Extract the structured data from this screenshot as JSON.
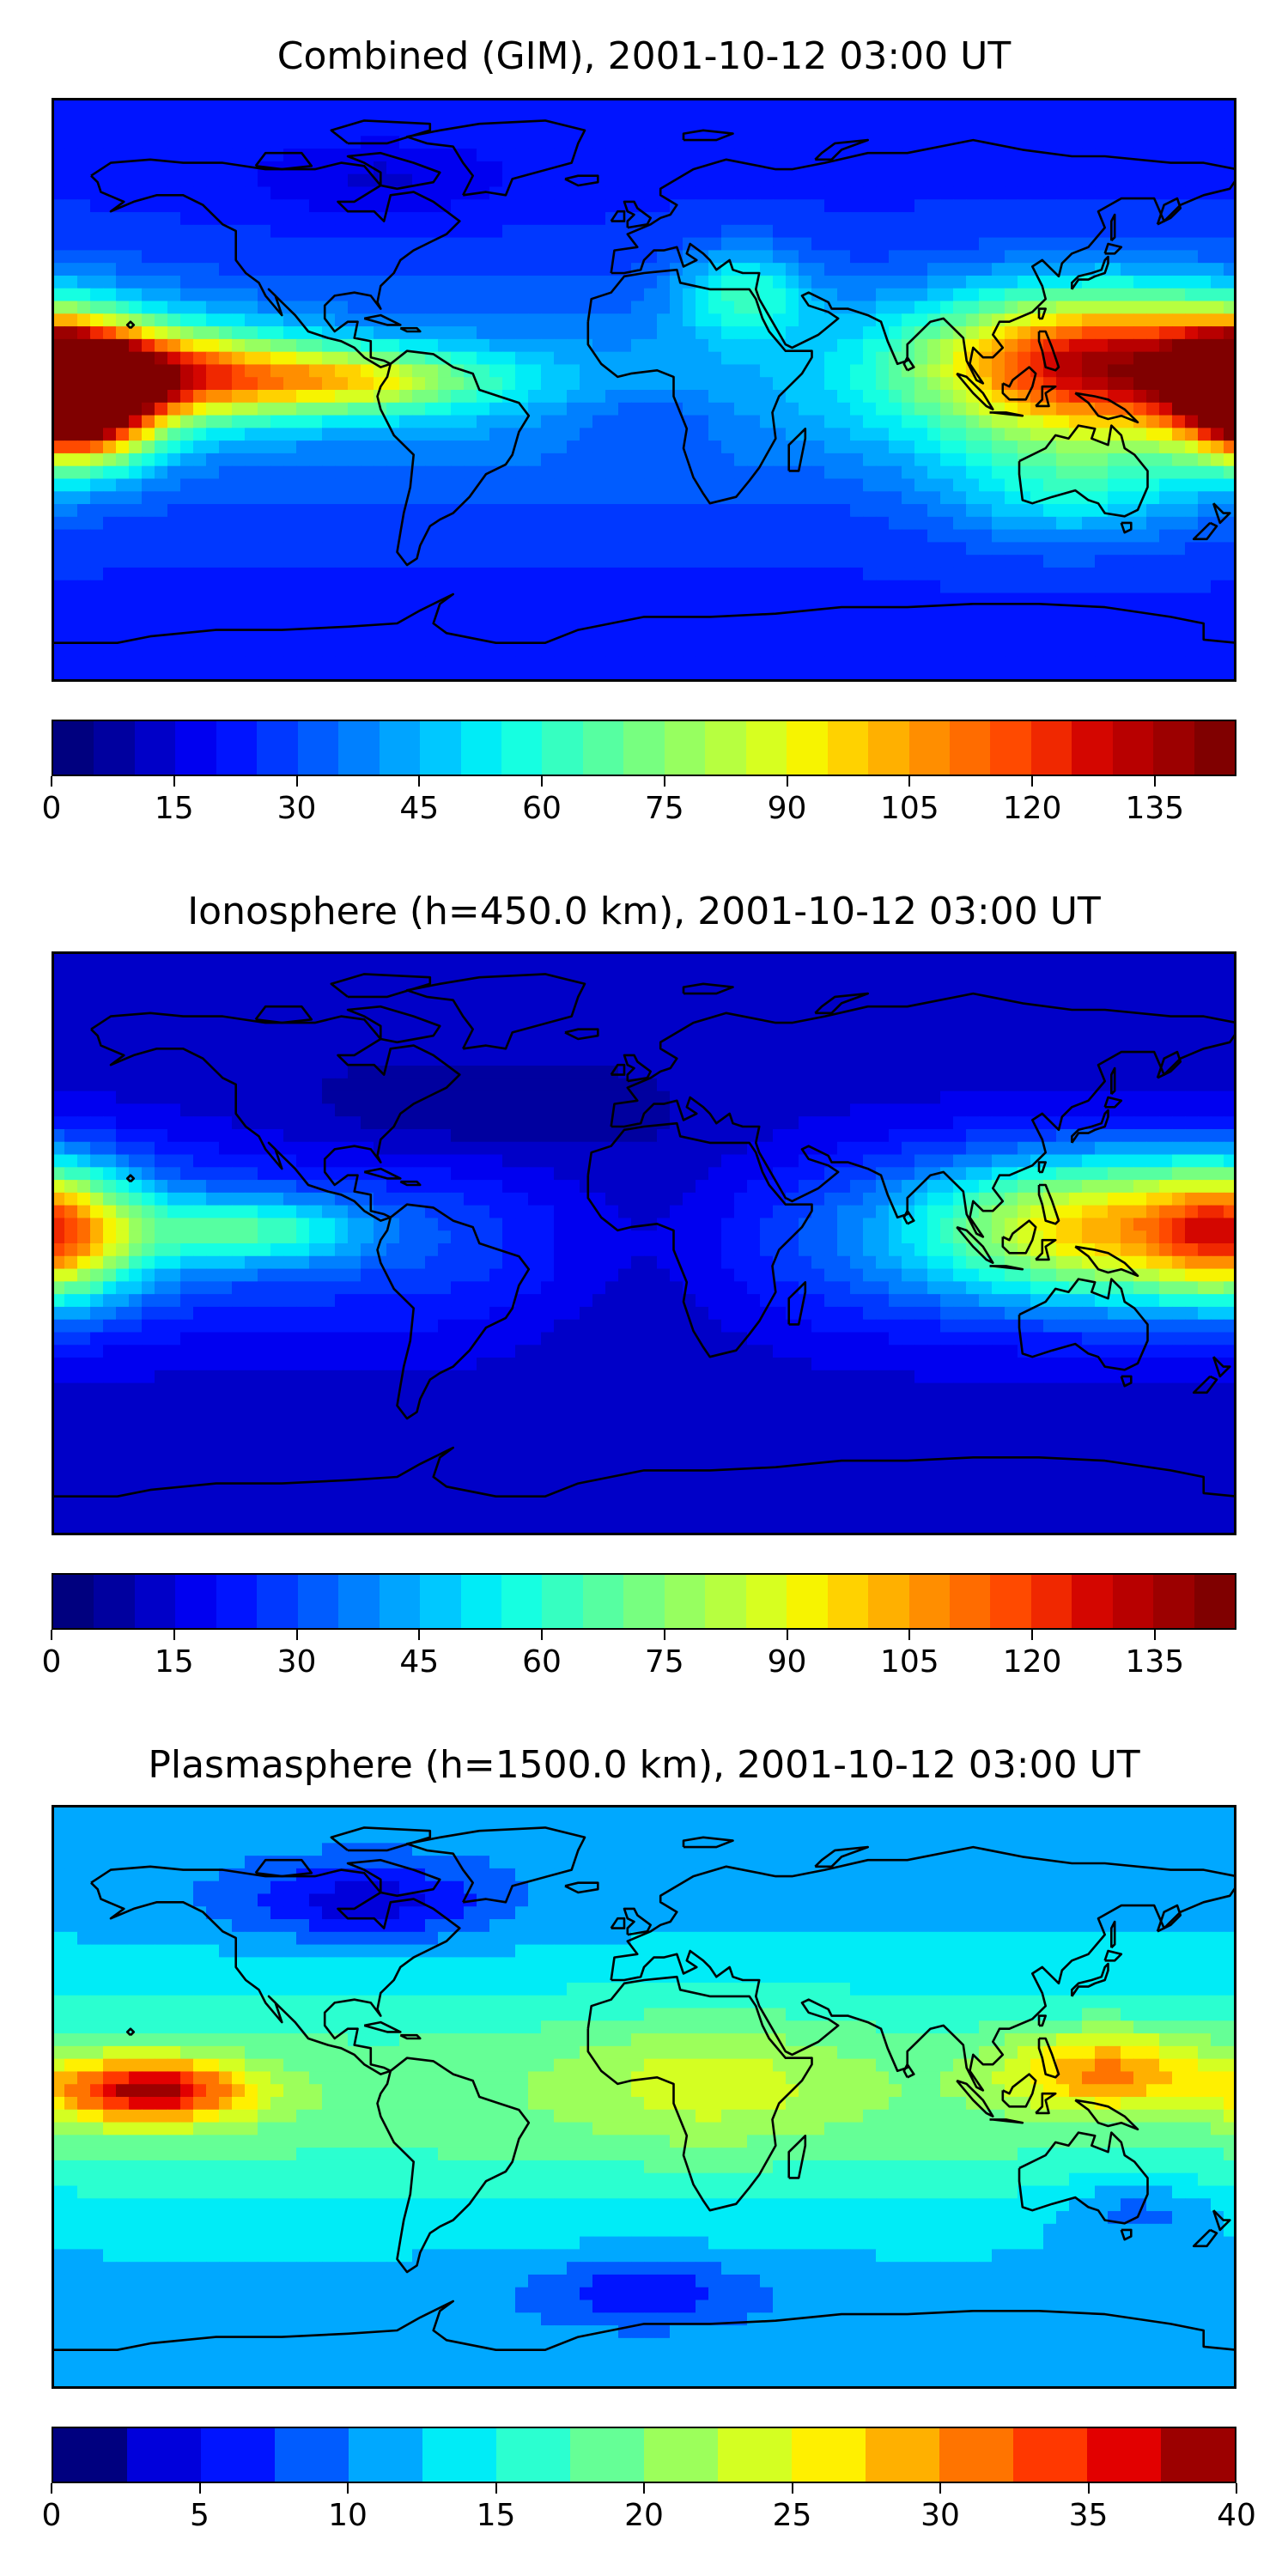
{
  "panels": [
    {
      "title": "Combined (GIM), 2001-10-12 03:00 UT",
      "colorbar": {
        "min": 0,
        "max": 145,
        "n_levels": 29,
        "ticks": [
          "0",
          "15",
          "30",
          "45",
          "60",
          "75",
          "90",
          "105",
          "120",
          "135"
        ],
        "tick_values": [
          0,
          15,
          30,
          45,
          60,
          75,
          90,
          105,
          120,
          135
        ]
      },
      "blobs": [
        {
          "lon": 140,
          "lat": 8,
          "rlon": 55,
          "rlat": 22,
          "v": 95
        },
        {
          "lon": 178,
          "lat": 5,
          "rlon": 18,
          "rlat": 14,
          "v": 30
        },
        {
          "lon": -172,
          "lat": -3,
          "rlon": 22,
          "rlat": 18,
          "v": 120
        },
        {
          "lon": -145,
          "lat": 5,
          "rlon": 40,
          "rlat": 14,
          "v": 60
        },
        {
          "lon": -90,
          "lat": 3,
          "rlon": 45,
          "rlat": 10,
          "v": 50
        },
        {
          "lon": 30,
          "lat": 30,
          "rlon": 20,
          "rlat": 14,
          "v": 30
        },
        {
          "lon": 0,
          "lat": -10,
          "rlon": 25,
          "rlat": 10,
          "v": -10
        },
        {
          "lon": -80,
          "lat": 65,
          "rlon": 40,
          "rlat": 12,
          "v": -10
        },
        {
          "lon": 130,
          "lat": -30,
          "rlon": 40,
          "rlat": 18,
          "v": 25
        }
      ],
      "bg": {
        "base": 24,
        "equator": 42,
        "lat_width": 32
      }
    },
    {
      "title": "Ionosphere  (h=450.0 km), 2001-10-12 03:00 UT",
      "colorbar": {
        "min": 0,
        "max": 145,
        "n_levels": 29,
        "ticks": [
          "0",
          "15",
          "30",
          "45",
          "60",
          "75",
          "90",
          "105",
          "120",
          "135"
        ],
        "tick_values": [
          0,
          15,
          30,
          45,
          60,
          75,
          90,
          105,
          120,
          135
        ]
      },
      "blobs": [
        {
          "lon": 140,
          "lat": 5,
          "rlon": 55,
          "rlat": 22,
          "v": 70
        },
        {
          "lon": 180,
          "lat": 3,
          "rlon": 25,
          "rlat": 20,
          "v": 55
        },
        {
          "lon": -120,
          "lat": 4,
          "rlon": 35,
          "rlat": 10,
          "v": 35
        },
        {
          "lon": 0,
          "lat": 0,
          "rlon": 40,
          "rlat": 35,
          "v": -15
        },
        {
          "lon": -60,
          "lat": 40,
          "rlon": 50,
          "rlat": 15,
          "v": -8
        }
      ],
      "bg": {
        "base": 12,
        "equator": 30,
        "lat_width": 30
      }
    },
    {
      "title": "Plasmasphere (h=1500.0 km), 2001-10-12 03:00 UT",
      "colorbar": {
        "min": 0,
        "max": 40,
        "n_levels": 16,
        "ticks": [
          "0",
          "5",
          "10",
          "15",
          "20",
          "25",
          "30",
          "35",
          "40"
        ],
        "tick_values": [
          0,
          5,
          10,
          15,
          20,
          25,
          30,
          35,
          40
        ]
      },
      "blobs": [
        {
          "lon": -150,
          "lat": 2,
          "rlon": 30,
          "rlat": 10,
          "v": 20
        },
        {
          "lon": 140,
          "lat": 8,
          "rlon": 30,
          "rlat": 12,
          "v": 12
        },
        {
          "lon": -85,
          "lat": 60,
          "rlon": 40,
          "rlat": 12,
          "v": -8
        },
        {
          "lon": 20,
          "lat": 5,
          "rlon": 45,
          "rlat": 20,
          "v": 5
        },
        {
          "lon": 0,
          "lat": -60,
          "rlon": 35,
          "rlat": 10,
          "v": -6
        },
        {
          "lon": 150,
          "lat": -35,
          "rlon": 25,
          "rlat": 10,
          "v": -5
        }
      ],
      "bg": {
        "base": 11,
        "equator": 19,
        "lat_width": 38
      }
    }
  ],
  "colors": {
    "ionosphere_scale": [
      "#00007f",
      "#00009f",
      "#0000c8",
      "#0000f0",
      "#0014ff",
      "#0038ff",
      "#005cff",
      "#0080ff",
      "#00a4ff",
      "#00c8ff",
      "#00ecf7",
      "#16ffe1",
      "#36ffc1",
      "#56ffa1",
      "#77ff80",
      "#97ff60",
      "#b7ff40",
      "#d7ff20",
      "#f7f400",
      "#ffd200",
      "#ffb000",
      "#ff8e00",
      "#ff6c00",
      "#ff4a00",
      "#f02800",
      "#d40600",
      "#b80000",
      "#9c0000",
      "#800000"
    ],
    "plasmasphere_scale": [
      "#00007f",
      "#0000db",
      "#0014ff",
      "#005cff",
      "#00a8ff",
      "#00ecf7",
      "#2bffd0",
      "#65ff96",
      "#9cff5b",
      "#d4ff22",
      "#fff000",
      "#ffb000",
      "#ff7400",
      "#ff3800",
      "#e20000",
      "#9c0000"
    ],
    "coastline": "#000000"
  }
}
